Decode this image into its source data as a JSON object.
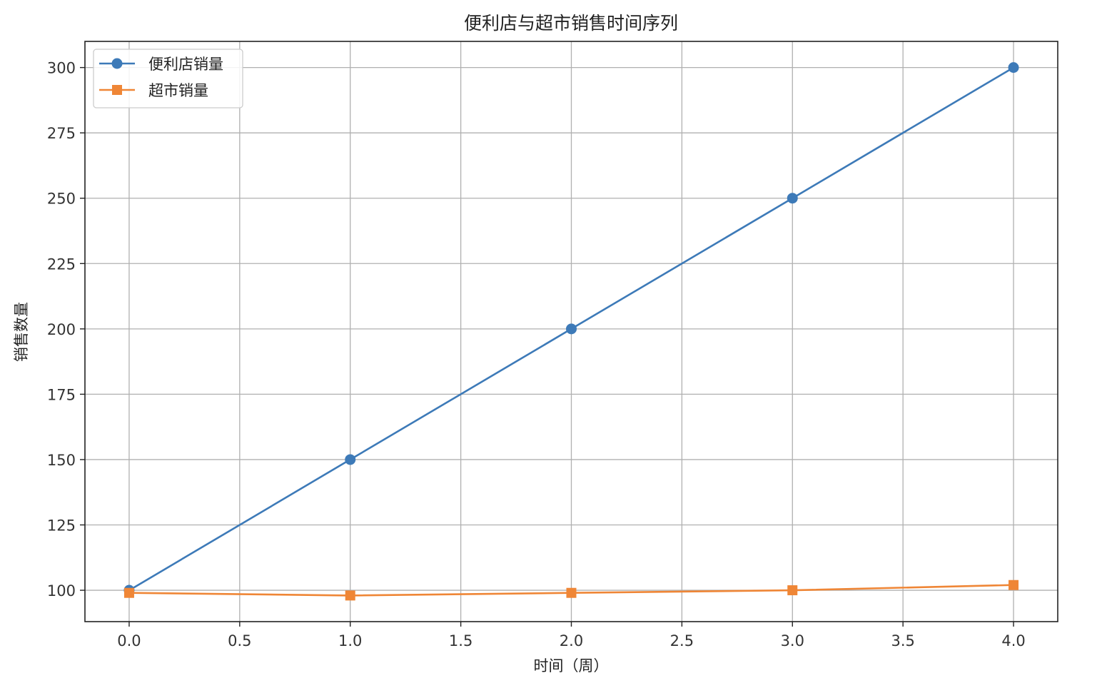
{
  "chart_data": {
    "type": "line",
    "title": "便利店与超市销售时间序列",
    "xlabel": "时间（周）",
    "ylabel": "销售数量",
    "x": [
      0,
      1,
      2,
      3,
      4
    ],
    "xlim": [
      -0.2,
      4.2
    ],
    "ylim": [
      88,
      310
    ],
    "xticks": [
      0.0,
      0.5,
      1.0,
      1.5,
      2.0,
      2.5,
      3.0,
      3.5,
      4.0
    ],
    "yticks": [
      100,
      125,
      150,
      175,
      200,
      225,
      250,
      275,
      300
    ],
    "xtick_labels": [
      "0.0",
      "0.5",
      "1.0",
      "1.5",
      "2.0",
      "2.5",
      "3.0",
      "3.5",
      "4.0"
    ],
    "ytick_labels": [
      "100",
      "125",
      "150",
      "175",
      "200",
      "225",
      "250",
      "275",
      "300"
    ],
    "grid": true,
    "legend_position": "top-left",
    "series": [
      {
        "name": "便利店销量",
        "values": [
          100,
          150,
          200,
          250,
          300
        ],
        "color": "#3d7ab8",
        "marker": "circle"
      },
      {
        "name": "超市销量",
        "values": [
          99,
          98,
          99,
          100,
          102
        ],
        "color": "#ef8636",
        "marker": "square"
      }
    ]
  }
}
